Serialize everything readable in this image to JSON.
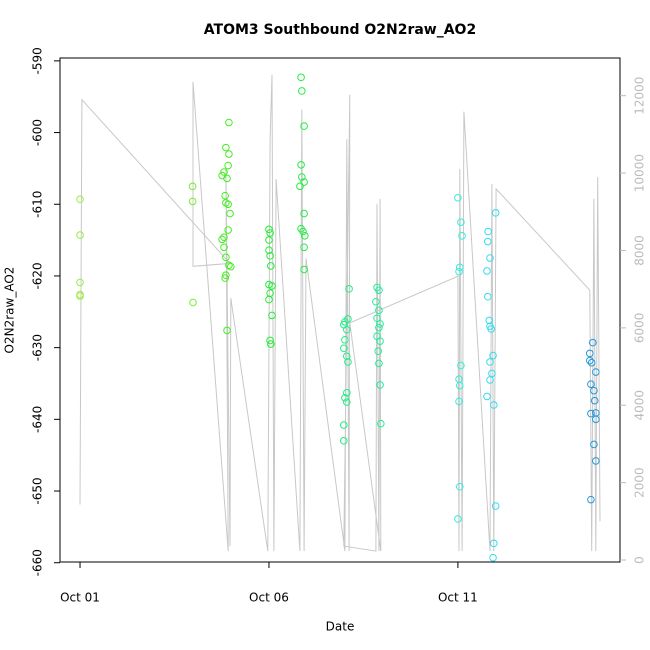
{
  "chart_data": {
    "type": "scatter",
    "title": "ATOM3 Southbound O2N2raw_AO2",
    "x_label": "Date",
    "y_label": "O2N2raw_AO2",
    "xlim": [
      -0.53,
      14.29
    ],
    "xticks": [
      {
        "value": 0,
        "label": "Oct 01"
      },
      {
        "value": 5,
        "label": "Oct 06"
      },
      {
        "value": 10,
        "label": "Oct 11"
      }
    ],
    "ylim": [
      -659.9,
      -589.6
    ],
    "yticks": [
      -660,
      -650,
      -640,
      -630,
      -620,
      -610,
      -600,
      -590
    ],
    "y2lim": [
      -51,
      12974
    ],
    "y2ticks": [
      0,
      2000,
      4000,
      6000,
      8000,
      10000,
      12000
    ],
    "y2color": "#bbbbbb",
    "series": [
      {
        "style": "line",
        "axis": "y2",
        "color": "#c8c8c8",
        "x": [
          0,
          0.05,
          3.97,
          2.99,
          2.99,
          3.92,
          3.86,
          3.97,
          3.99,
          4.97,
          5.03,
          5.08,
          5.13,
          5.19,
          5.82,
          5.87,
          5.93,
          5.98,
          7.01,
          7.06,
          7.12,
          7.14,
          6.98,
          7.83,
          7.86,
          7.91,
          7.94,
          7.96,
          7.14,
          10.0,
          10.03,
          10.05,
          10.11,
          10.16,
          10.85,
          10.9,
          10.95,
          11.01,
          13.49,
          13.54,
          13.6,
          13.65,
          13.7,
          13.76
        ],
        "values": [
          1436,
          11897,
          7667,
          7590,
          12359,
          231,
          10103,
          359,
          6769,
          231,
          10872,
          12538,
          231,
          9846,
          231,
          11641,
          231,
          7795,
          231,
          10872,
          231,
          12026,
          359,
          231,
          9205,
          231,
          9333,
          231,
          6128,
          7333,
          231,
          10103,
          231,
          11590,
          231,
          9718,
          231,
          9590,
          6974,
          231,
          9333,
          231,
          9897,
          1000
        ]
      },
      {
        "style": "points",
        "color": "#99ee44",
        "x": [
          0,
          0,
          0,
          0,
          0
        ],
        "values": [
          -609.3,
          -614.3,
          -620.9,
          -622.6,
          -622.8
        ]
      },
      {
        "style": "points",
        "color": "#77ee33",
        "x": [
          2.98,
          2.98,
          2.99
        ],
        "values": [
          -607.5,
          -609.6,
          -623.7
        ]
      },
      {
        "style": "points",
        "color": "#44ee22",
        "x": [
          3.94,
          3.86,
          3.94,
          3.92,
          3.81,
          3.76,
          3.89,
          3.84,
          3.86,
          3.92,
          3.97,
          3.92,
          3.81,
          3.76,
          3.81,
          3.86,
          3.94,
          3.99,
          3.86,
          3.84,
          3.89
        ],
        "values": [
          -598.6,
          -602.1,
          -603.0,
          -604.6,
          -605.5,
          -606.0,
          -606.4,
          -608.8,
          -609.8,
          -610.0,
          -611.3,
          -613.6,
          -614.6,
          -614.9,
          -616.0,
          -617.4,
          -618.5,
          -618.7,
          -619.9,
          -620.3,
          -627.6
        ]
      },
      {
        "style": "points",
        "color": "#22ee33",
        "x": [
          5.0,
          5.03,
          5.0,
          5.0,
          5.03,
          5.05,
          5.0,
          5.08,
          5.03,
          5.0,
          5.08,
          5.03,
          5.05
        ],
        "values": [
          -613.5,
          -614.0,
          -615.0,
          -616.4,
          -617.2,
          -618.6,
          -621.2,
          -621.4,
          -622.4,
          -623.3,
          -625.5,
          -629.0,
          -629.5
        ]
      },
      {
        "style": "points",
        "color": "#22ee44",
        "x": [
          5.85,
          5.87,
          5.93,
          5.85,
          5.87,
          5.93,
          5.82,
          5.93,
          5.85,
          5.9,
          5.95,
          5.93,
          5.93
        ],
        "values": [
          -592.3,
          -594.2,
          -599.1,
          -604.5,
          -606.2,
          -606.9,
          -607.5,
          -611.3,
          -613.4,
          -613.8,
          -614.4,
          -616.0,
          -619.1
        ]
      },
      {
        "style": "points",
        "color": "#22ee88",
        "x": [
          7.01,
          6.98,
          7.06,
          7.01,
          6.98,
          7.06,
          7.09,
          7.06,
          7.01,
          7.06,
          6.98,
          6.98,
          7.12,
          7.09
        ],
        "values": [
          -626.4,
          -626.8,
          -627.5,
          -628.9,
          -630.1,
          -631.2,
          -632.0,
          -636.3,
          -637.0,
          -637.6,
          -640.8,
          -643.0,
          -621.8,
          -626.0
        ]
      },
      {
        "style": "points",
        "color": "#22ee99",
        "x": [
          7.86,
          7.83,
          7.91,
          7.86,
          7.94,
          7.91,
          7.86,
          7.94,
          7.89,
          7.91,
          7.94,
          7.96,
          7.91
        ],
        "values": [
          -621.6,
          -623.6,
          -624.8,
          -625.9,
          -626.7,
          -627.2,
          -628.4,
          -629.1,
          -630.5,
          -632.2,
          -635.2,
          -640.6,
          -622.0
        ]
      },
      {
        "style": "points",
        "color": "#33eedd",
        "x": [
          10.0,
          10.08,
          10.11,
          10.05,
          10.03,
          10.08,
          10.03,
          10.05,
          10.03,
          10.05,
          10.0
        ],
        "values": [
          -609.1,
          -612.5,
          -614.4,
          -618.8,
          -619.4,
          -632.5,
          -634.4,
          -635.3,
          -637.5,
          -649.4,
          -653.9
        ]
      },
      {
        "style": "points",
        "color": "#33ddee",
        "x": [
          11.0,
          10.8,
          10.79,
          10.85,
          10.77,
          10.79,
          10.83,
          10.85,
          10.88,
          10.93,
          10.85,
          10.9,
          10.85,
          10.77,
          10.95,
          11.0,
          10.95,
          10.93
        ],
        "values": [
          -611.2,
          -613.8,
          -615.2,
          -617.5,
          -619.3,
          -622.9,
          -626.2,
          -627.0,
          -627.4,
          -631.1,
          -632.0,
          -633.6,
          -634.5,
          -636.8,
          -638.0,
          -652.1,
          -657.3,
          -659.3
        ]
      },
      {
        "style": "points",
        "color": "#2299dd",
        "x": [
          13.57,
          13.49,
          13.49,
          13.54,
          13.65,
          13.52,
          13.6,
          13.62,
          13.65,
          13.52,
          13.65,
          13.6,
          13.65,
          13.52
        ],
        "values": [
          -629.3,
          -630.8,
          -631.8,
          -632.1,
          -633.4,
          -635.1,
          -636.0,
          -637.4,
          -639.1,
          -639.2,
          -640.0,
          -643.5,
          -645.8,
          -651.2
        ]
      }
    ]
  }
}
